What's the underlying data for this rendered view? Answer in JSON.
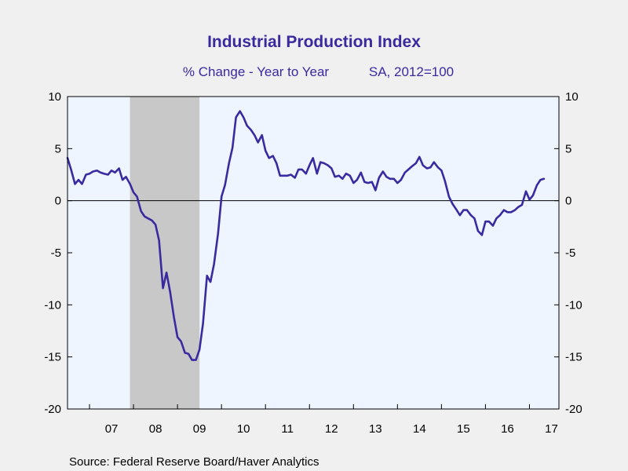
{
  "colors": {
    "background": "#f0f0f0",
    "plot_bg": "#eef5ff",
    "series": "#3a2aa0",
    "recession": "#c8c8c8",
    "title": "#3a2aa0"
  },
  "source": "Source:  Federal Reserve Board/Haver Analytics",
  "chart_data": {
    "type": "line",
    "title": "Industrial Production Index",
    "subtitle_left": "% Change - Year to Year",
    "subtitle_right": "SA, 2012=100",
    "ylim": [
      -20,
      10
    ],
    "yticks": [
      10,
      5,
      0,
      -5,
      -10,
      -15,
      -20
    ],
    "ytick_labels": [
      "10",
      "5",
      "0",
      "-5",
      "-10",
      "-15",
      "-20"
    ],
    "x_start_year": 2006.5,
    "x_end_year": 2017.67,
    "xtick_labels": [
      "07",
      "08",
      "09",
      "10",
      "11",
      "12",
      "13",
      "14",
      "15",
      "16",
      "17"
    ],
    "xtick_label_years": [
      2007.5,
      2008.5,
      2009.5,
      2010.5,
      2011.5,
      2012.5,
      2013.5,
      2014.5,
      2015.5,
      2016.5,
      2017.5
    ],
    "zero_line": true,
    "grid": false,
    "recession": {
      "start": 2007.92,
      "end": 2009.5
    },
    "series": [
      {
        "x": [
          2006.5,
          2006.58,
          2006.67,
          2006.75,
          2006.83,
          2006.92,
          2007.0,
          2007.08,
          2007.17,
          2007.25,
          2007.33,
          2007.42,
          2007.5,
          2007.58,
          2007.67,
          2007.75,
          2007.83,
          2007.92,
          2008.0,
          2008.08,
          2008.17,
          2008.25,
          2008.33,
          2008.42,
          2008.5,
          2008.58,
          2008.67,
          2008.75,
          2008.83,
          2008.92,
          2009.0,
          2009.08,
          2009.17,
          2009.25,
          2009.33,
          2009.42,
          2009.5,
          2009.58,
          2009.67,
          2009.75,
          2009.83,
          2009.92,
          2010.0,
          2010.08,
          2010.17,
          2010.25,
          2010.33,
          2010.42,
          2010.5,
          2010.58,
          2010.67,
          2010.75,
          2010.83,
          2010.92,
          2011.0,
          2011.08,
          2011.17,
          2011.25,
          2011.33,
          2011.42,
          2011.5,
          2011.58,
          2011.67,
          2011.75,
          2011.83,
          2011.92,
          2012.0,
          2012.08,
          2012.17,
          2012.25,
          2012.33,
          2012.42,
          2012.5,
          2012.58,
          2012.67,
          2012.75,
          2012.83,
          2012.92,
          2013.0,
          2013.08,
          2013.17,
          2013.25,
          2013.33,
          2013.42,
          2013.5,
          2013.58,
          2013.67,
          2013.75,
          2013.83,
          2013.92,
          2014.0,
          2014.08,
          2014.17,
          2014.25,
          2014.33,
          2014.42,
          2014.5,
          2014.58,
          2014.67,
          2014.75,
          2014.83,
          2014.92,
          2015.0,
          2015.08,
          2015.17,
          2015.25,
          2015.33,
          2015.42,
          2015.5,
          2015.58,
          2015.67,
          2015.75,
          2015.83,
          2015.92,
          2016.0,
          2016.08,
          2016.17,
          2016.25,
          2016.33,
          2016.42,
          2016.5,
          2016.58,
          2016.67,
          2016.75,
          2016.83,
          2016.92,
          2017.0,
          2017.08,
          2017.17,
          2017.25,
          2017.33
        ],
        "values": [
          4.1,
          3.0,
          1.6,
          2.0,
          1.6,
          2.5,
          2.6,
          2.8,
          2.9,
          2.7,
          2.6,
          2.5,
          2.9,
          2.7,
          3.1,
          2.0,
          2.3,
          1.6,
          0.8,
          0.4,
          -1.0,
          -1.5,
          -1.7,
          -1.9,
          -2.3,
          -3.8,
          -8.4,
          -6.9,
          -8.7,
          -11.2,
          -13.1,
          -13.5,
          -14.6,
          -14.7,
          -15.3,
          -15.3,
          -14.3,
          -11.8,
          -7.2,
          -7.8,
          -6.1,
          -3.2,
          0.4,
          1.5,
          3.6,
          5.1,
          8.0,
          8.6,
          8.0,
          7.2,
          6.8,
          6.3,
          5.6,
          6.3,
          4.8,
          4.1,
          4.3,
          3.6,
          2.4,
          2.4,
          2.4,
          2.5,
          2.2,
          3.0,
          3.0,
          2.6,
          3.4,
          4.1,
          2.6,
          3.7,
          3.6,
          3.4,
          3.1,
          2.3,
          2.4,
          2.1,
          2.6,
          2.4,
          1.7,
          2.0,
          2.7,
          1.8,
          1.7,
          1.8,
          1.0,
          2.2,
          2.8,
          2.3,
          2.1,
          2.1,
          1.7,
          2.0,
          2.7,
          3.0,
          3.3,
          3.6,
          4.2,
          3.4,
          3.1,
          3.2,
          3.7,
          3.2,
          2.9,
          1.9,
          0.4,
          -0.3,
          -0.8,
          -1.4,
          -0.9,
          -0.9,
          -1.4,
          -1.7,
          -2.9,
          -3.3,
          -2.0,
          -2.0,
          -2.4,
          -1.7,
          -1.4,
          -0.9,
          -1.1,
          -1.1,
          -0.9,
          -0.6,
          -0.4,
          0.9,
          0.1,
          0.5,
          1.5,
          2.0,
          2.1
        ]
      }
    ]
  }
}
